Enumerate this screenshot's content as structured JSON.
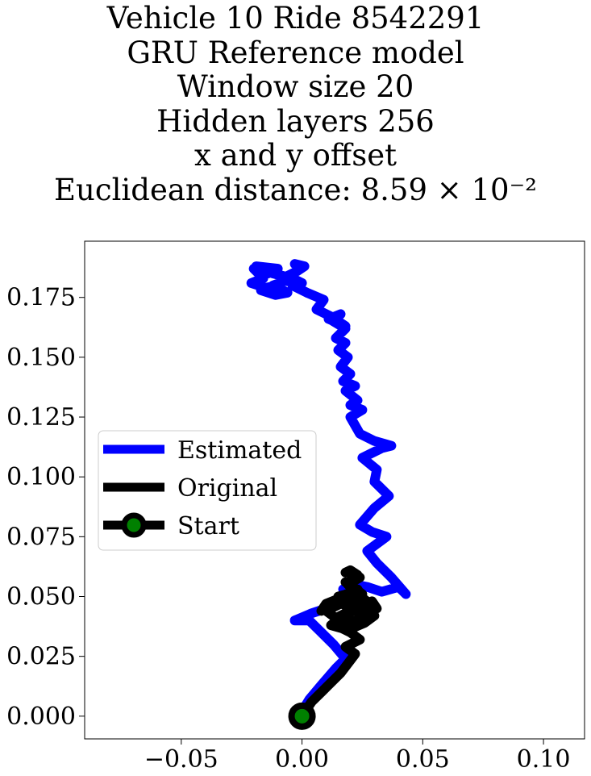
{
  "chart_data": {
    "type": "line",
    "title_lines": [
      "Vehicle 10 Ride 8542291",
      "GRU Reference model",
      "Window size 20",
      "Hidden layers 256",
      "x and y offset",
      "Euclidean distance: 8.59 × 10⁻²"
    ],
    "xlabel": "",
    "ylabel": "",
    "xlim": [
      -0.09,
      0.117
    ],
    "ylim": [
      -0.0095,
      0.1985
    ],
    "xticks": [
      -0.05,
      0.0,
      0.05,
      0.1
    ],
    "xtick_labels": [
      "−0.05",
      "0.00",
      "0.05",
      "0.10"
    ],
    "yticks": [
      0.0,
      0.025,
      0.05,
      0.075,
      0.1,
      0.125,
      0.15,
      0.175
    ],
    "ytick_labels": [
      "0.000",
      "0.025",
      "0.050",
      "0.075",
      "0.100",
      "0.125",
      "0.150",
      "0.175"
    ],
    "grid": false,
    "legend_position": "center-left",
    "series": [
      {
        "name": "Estimated",
        "color": "#0000ff",
        "x": [
          0.0,
          0.003,
          0.008,
          0.014,
          0.018,
          0.013,
          0.007,
          0.003,
          -0.003,
          0.004,
          0.01,
          0.015,
          0.019,
          0.017,
          0.022,
          0.027,
          0.033,
          0.04,
          0.043,
          0.037,
          0.031,
          0.027,
          0.035,
          0.029,
          0.024,
          0.03,
          0.036,
          0.03,
          0.031,
          0.025,
          0.033,
          0.037,
          0.03,
          0.024,
          0.02,
          0.025,
          0.02,
          0.023,
          0.018,
          0.022,
          0.017,
          0.02,
          0.016,
          0.019,
          0.015,
          0.018,
          0.014,
          0.018,
          0.013,
          0.016,
          0.011,
          0.018,
          0.012,
          0.006,
          0.009,
          0.002,
          -0.004,
          0.0,
          -0.008,
          -0.004,
          -0.012,
          -0.008,
          -0.015,
          -0.01,
          -0.019,
          -0.014,
          -0.02,
          -0.016,
          -0.021,
          -0.015,
          -0.01,
          -0.017,
          -0.011,
          -0.006,
          -0.012,
          -0.004,
          0.0,
          -0.006,
          -0.002,
          0.001,
          -0.003
        ],
        "y": [
          0.002,
          0.007,
          0.013,
          0.02,
          0.024,
          0.03,
          0.036,
          0.04,
          0.04,
          0.043,
          0.045,
          0.047,
          0.05,
          0.053,
          0.055,
          0.054,
          0.052,
          0.054,
          0.051,
          0.058,
          0.064,
          0.069,
          0.075,
          0.077,
          0.08,
          0.087,
          0.092,
          0.098,
          0.103,
          0.108,
          0.112,
          0.113,
          0.115,
          0.118,
          0.125,
          0.128,
          0.13,
          0.132,
          0.136,
          0.138,
          0.14,
          0.143,
          0.146,
          0.15,
          0.153,
          0.156,
          0.158,
          0.162,
          0.165,
          0.168,
          0.166,
          0.163,
          0.167,
          0.17,
          0.174,
          0.177,
          0.18,
          0.181,
          0.182,
          0.183,
          0.185,
          0.184,
          0.186,
          0.187,
          0.188,
          0.185,
          0.187,
          0.183,
          0.181,
          0.179,
          0.18,
          0.178,
          0.176,
          0.177,
          0.18,
          0.183,
          0.181,
          0.184,
          0.186,
          0.188,
          0.189
        ]
      },
      {
        "name": "Original",
        "color": "#000000",
        "x": [
          0.0,
          0.004,
          0.008,
          0.012,
          0.016,
          0.019,
          0.022,
          0.018,
          0.024,
          0.02,
          0.014,
          0.022,
          0.028,
          0.023,
          0.017,
          0.012,
          0.019,
          0.026,
          0.03,
          0.024,
          0.018,
          0.01,
          0.014,
          0.022,
          0.029,
          0.031,
          0.025,
          0.02,
          0.015,
          0.022,
          0.028,
          0.021,
          0.016,
          0.023,
          0.026,
          0.019,
          0.015,
          0.01,
          0.008,
          0.013,
          0.02,
          0.025,
          0.021,
          0.018,
          0.022,
          0.019,
          0.024,
          0.021,
          0.02,
          0.023,
          0.02,
          0.018
        ],
        "y": [
          0.0,
          0.006,
          0.01,
          0.014,
          0.018,
          0.022,
          0.026,
          0.029,
          0.032,
          0.035,
          0.038,
          0.04,
          0.043,
          0.045,
          0.042,
          0.038,
          0.036,
          0.039,
          0.042,
          0.046,
          0.048,
          0.044,
          0.041,
          0.045,
          0.048,
          0.045,
          0.042,
          0.046,
          0.05,
          0.052,
          0.047,
          0.044,
          0.05,
          0.053,
          0.048,
          0.045,
          0.049,
          0.047,
          0.044,
          0.046,
          0.049,
          0.051,
          0.054,
          0.056,
          0.053,
          0.055,
          0.058,
          0.057,
          0.06,
          0.059,
          0.061,
          0.06
        ]
      }
    ],
    "start_point": {
      "name": "Start",
      "x": 0.0,
      "y": 0.0,
      "fill": "#008000",
      "edge": "#000000"
    }
  }
}
